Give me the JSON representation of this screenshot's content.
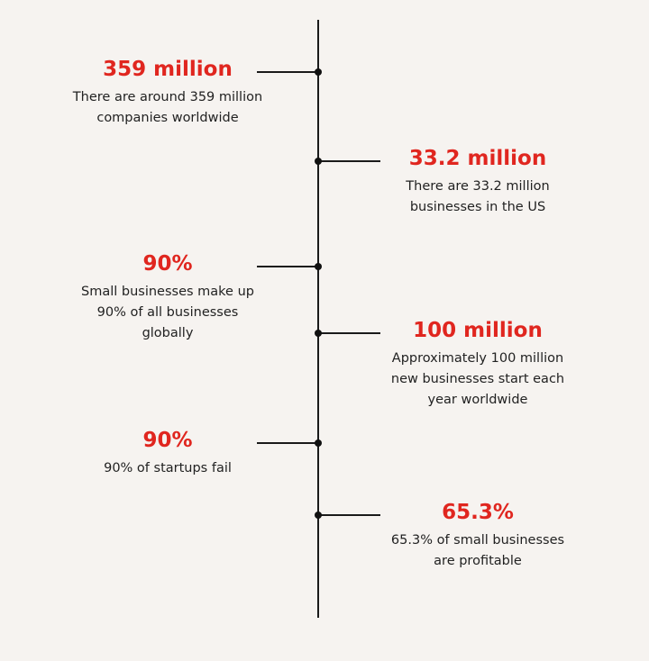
{
  "accent_color": "#e0261f",
  "stats": [
    {
      "side": "left",
      "value": "359 million",
      "lines": [
        "There are around 359 million",
        "companies worldwide"
      ]
    },
    {
      "side": "right",
      "value": "33.2 million",
      "lines": [
        "There are 33.2 million",
        "businesses in the US"
      ]
    },
    {
      "side": "left",
      "value": "90%",
      "lines": [
        "Small businesses make up",
        "90% of all businesses",
        "globally"
      ]
    },
    {
      "side": "right",
      "value": "100 million",
      "lines": [
        "Approximately 100 million",
        "new businesses start each",
        "year worldwide"
      ]
    },
    {
      "side": "left",
      "value": "90%",
      "lines": [
        "90% of startups fail"
      ]
    },
    {
      "side": "right",
      "value": "65.3%",
      "lines": [
        "65.3% of small businesses",
        "are profitable"
      ]
    }
  ]
}
